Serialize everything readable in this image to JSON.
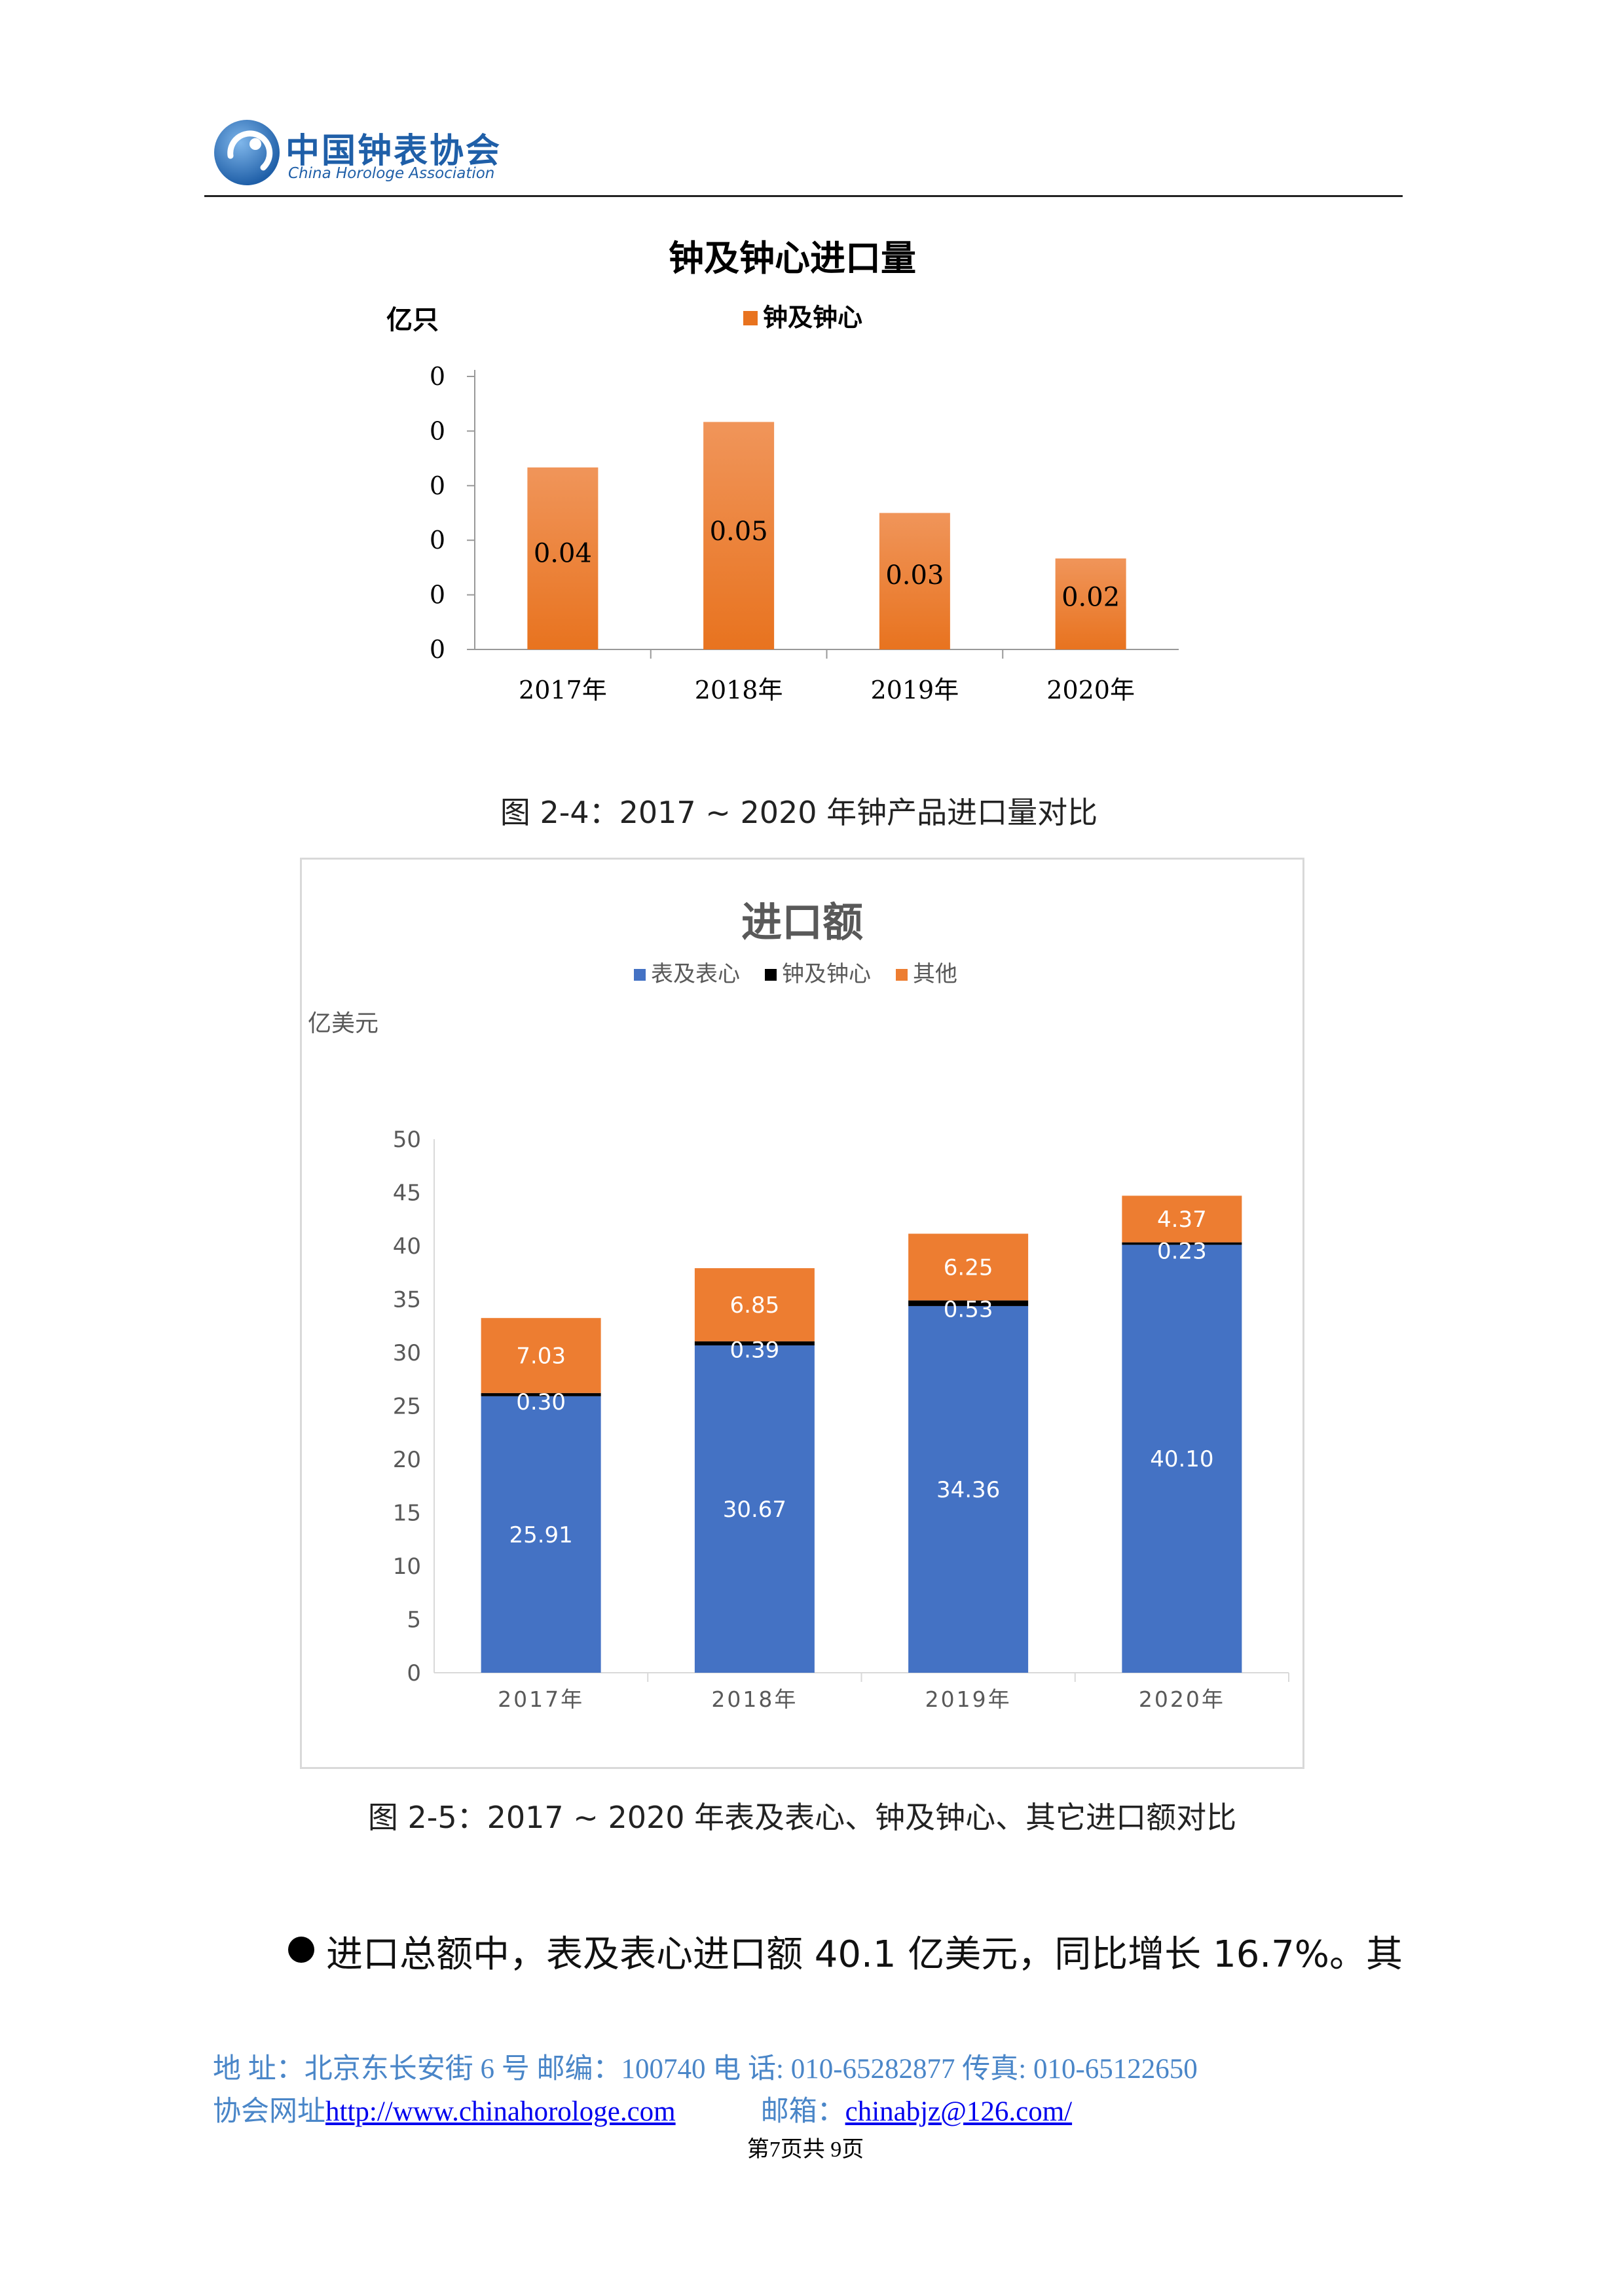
{
  "header": {
    "org_name_cn": "中国钟表协会",
    "org_name_en": "China Horologe Association"
  },
  "figure1": {
    "title": "钟及钟心进口量",
    "caption": "图 2-4：2017 ~ 2020 年钟产品进口量对比",
    "chart_data": {
      "type": "bar",
      "title": "钟及钟心进口量",
      "ylabel": "亿只",
      "xlabel": "",
      "categories": [
        "2017年",
        "2018年",
        "2019年",
        "2020年"
      ],
      "series": [
        {
          "name": "钟及钟心",
          "values": [
            0.04,
            0.05,
            0.03,
            0.02
          ],
          "labels": [
            "0.04",
            "0.05",
            "0.03",
            "0.02"
          ],
          "color": "#e8731f"
        }
      ],
      "ytick_labels": [
        "0",
        "0",
        "0",
        "0",
        "0",
        "0"
      ],
      "ylim": [
        0,
        0.06
      ],
      "grid": false,
      "legend": "top"
    }
  },
  "figure2": {
    "caption": "图 2-5：2017 ~ 2020 年表及表心、钟及钟心、其它进口额对比",
    "chart_data": {
      "type": "bar",
      "stacked": true,
      "title": "进口额",
      "ylabel": "亿美元",
      "xlabel": "",
      "categories": [
        "2017年",
        "2018年",
        "2019年",
        "2020年"
      ],
      "series": [
        {
          "name": "表及表心",
          "values": [
            25.91,
            30.67,
            34.36,
            40.1
          ],
          "labels": [
            "25.91",
            "30.67",
            "34.36",
            "40.10"
          ],
          "color": "#4472c4"
        },
        {
          "name": "钟及钟心",
          "values": [
            0.3,
            0.39,
            0.53,
            0.23
          ],
          "labels": [
            "0.30",
            "0.39",
            "0.53",
            "0.23"
          ],
          "color": "#000000"
        },
        {
          "name": "其他",
          "values": [
            7.03,
            6.85,
            6.25,
            4.37
          ],
          "labels": [
            "7.03",
            "6.85",
            "6.25",
            "4.37"
          ],
          "color": "#ed7d31"
        }
      ],
      "yticks": [
        0,
        5,
        10,
        15,
        20,
        25,
        30,
        35,
        40,
        45,
        50
      ],
      "ylim": [
        0,
        50
      ],
      "grid": false,
      "legend": "top"
    }
  },
  "body": {
    "paragraph": "进口总额中，表及表心进口额 40.1 亿美元，同比增长 16.7%。其"
  },
  "footer": {
    "line1": "地  址：北京东长安街 6 号  邮编：100740 电  话: 010-65282877  传真: 010-65122650",
    "site_label": "协会网址",
    "site_url": "http://www.chinahorologe.com",
    "email_label": "邮箱：",
    "email": "chinabjz@126.com/",
    "page": "第7页共  9页"
  }
}
